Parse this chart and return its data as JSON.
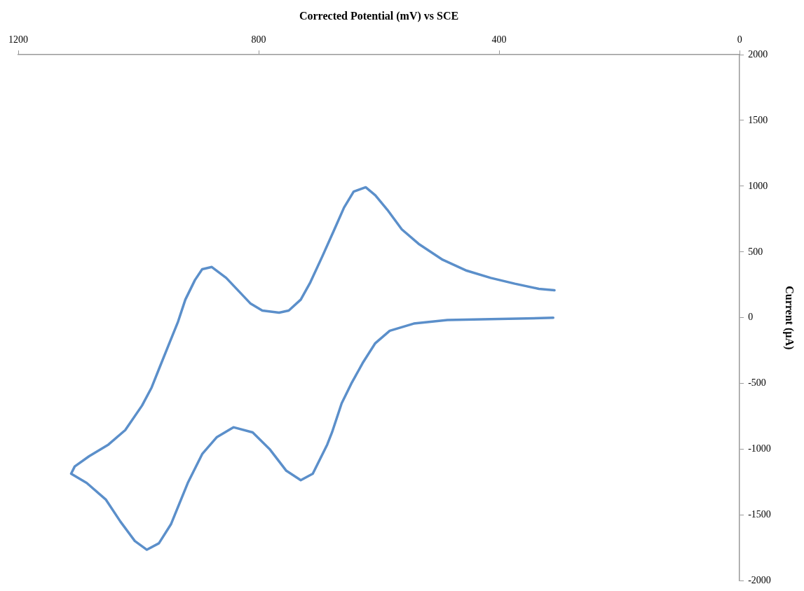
{
  "chart_data": {
    "type": "line",
    "xlabel": "Corrected Potential (mV) vs SCE",
    "ylabel": "Current (µA)",
    "xlim": [
      1200,
      0
    ],
    "xticks": [
      1200,
      800,
      400,
      0
    ],
    "ylim": [
      -2000,
      2000
    ],
    "yticks": [
      -2000,
      -1500,
      -1000,
      -500,
      0,
      500,
      1000,
      1500,
      2000
    ],
    "grid": false,
    "legend": false,
    "marker": "none",
    "series": [
      {
        "color": "#5b8fca",
        "x": [
          308,
          334,
          374,
          414,
          454,
          494,
          534,
          562,
          586,
          606,
          622,
          642,
          658,
          674,
          694,
          714,
          730,
          750,
          766,
          794,
          814,
          830,
          854,
          878,
          894,
          906,
          922,
          934,
          950,
          966,
          978,
          994,
          1022,
          1050,
          1082,
          1106,
          1112,
          1086,
          1054,
          1030,
          1006,
          986,
          966,
          946,
          918,
          894,
          870,
          842,
          810,
          782,
          754,
          730,
          710,
          686,
          678,
          662,
          646,
          626,
          606,
          582,
          542,
          486,
          414,
          310
        ],
        "values": [
          209,
          220,
          259,
          303,
          358,
          441,
          562,
          672,
          821,
          931,
          992,
          959,
          838,
          672,
          468,
          270,
          138,
          55,
          39,
          55,
          110,
          187,
          303,
          386,
          369,
          287,
          138,
          -28,
          -209,
          -391,
          -529,
          -667,
          -854,
          -964,
          -1052,
          -1130,
          -1185,
          -1256,
          -1383,
          -1549,
          -1697,
          -1763,
          -1714,
          -1570,
          -1256,
          -1036,
          -909,
          -832,
          -871,
          -997,
          -1163,
          -1234,
          -1185,
          -964,
          -871,
          -650,
          -501,
          -336,
          -193,
          -99,
          -44,
          -17,
          -11,
          0
        ]
      }
    ]
  }
}
